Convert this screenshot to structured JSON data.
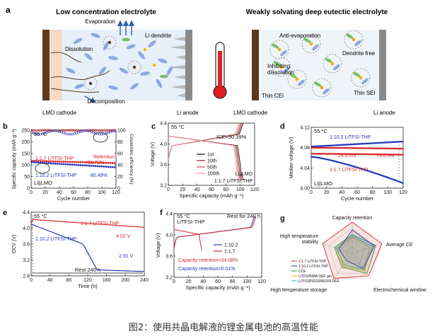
{
  "panel_a": {
    "letter": "a",
    "left_title": "Low concentration electrolyte",
    "right_title": "Weakly solvating deep eutectic electrolyte",
    "evaporation": "Evaporation",
    "li_dendrite": "Li dendrite",
    "dissolution": "Dissolution",
    "decomposition": "Decomposition",
    "lmo_cathode_left": "LMO cathode",
    "li_anode_left": "Li anode",
    "anti_evaporation": "Anti-evaporation",
    "dendrite_free": "Dendrite free",
    "inhibiting_dissolution": "Inhibiting\ndissolution",
    "thin_cei": "Thin CEI",
    "thin_sei": "Thin SEI",
    "lmo_cathode_right": "LMO cathode",
    "li_anode_right": "Li anode"
  },
  "caption": "图2：使用共晶电解液的锂金属电池的高温性能",
  "chart_data": [
    {
      "id": "b",
      "type": "scatter",
      "letter": "b",
      "xlabel": "Cycle number",
      "ylabel": "Specific capacity (mAh g⁻¹)",
      "y2label": "Coulombic efficiency (%)",
      "xlim": [
        0,
        120
      ],
      "ylim": [
        0,
        250
      ],
      "y2lim": [
        0,
        100
      ],
      "xticks": [
        0,
        20,
        40,
        60,
        80,
        100,
        120
      ],
      "yticks": [
        0,
        50,
        100,
        150,
        200,
        250
      ],
      "y2ticks": [
        0,
        20,
        40,
        60,
        80,
        100
      ],
      "annotations": {
        "temp": "55 °C",
        "retention_a": "Retention",
        "retention_b": "=91.72%",
        "val2": "80.49%",
        "cell": "Li||LMO"
      },
      "series": [
        {
          "name": "1:1.7 LiTFSI-THP",
          "color": "#d62728",
          "cap_start": 118,
          "cap_end": 108,
          "ce": 99.5
        },
        {
          "name": "1:10.2 LiTFSI-THP",
          "color": "#2338b8",
          "cap_start": 112,
          "cap_end": 90,
          "ce": 96
        }
      ]
    },
    {
      "id": "c",
      "type": "line",
      "letter": "c",
      "xlabel": "Specific capacity (mAh g⁻¹)",
      "ylabel": "Voltage (V)",
      "xlim": [
        0,
        120
      ],
      "ylim": [
        3.2,
        4.4
      ],
      "xticks": [
        0,
        20,
        40,
        60,
        80,
        100,
        120
      ],
      "yticks": [
        3.2,
        3.6,
        4.0,
        4.4
      ],
      "annotations": {
        "temp": "55 °C",
        "ice": "ICE=90.39%",
        "cell_a": "Li||LMO",
        "cell_b": "1:1.7 LiTFSI:THP"
      },
      "series": [
        {
          "name": "1st",
          "color": "#3d0c0c",
          "cap": 104
        },
        {
          "name": "10th",
          "color": "#8b2020",
          "cap": 102
        },
        {
          "name": "50th",
          "color": "#c0504d",
          "cap": 100
        },
        {
          "name": "100th",
          "color": "#e8a0a0",
          "cap": 98
        }
      ]
    },
    {
      "id": "d",
      "type": "scatter",
      "letter": "d",
      "xlabel": "Cycle number",
      "ylabel": "Median voltage (V)",
      "xlim": [
        0,
        120
      ],
      "ylim": [
        4.0,
        4.12
      ],
      "xticks": [
        0,
        20,
        40,
        60,
        80,
        100,
        120
      ],
      "yticks": [
        4.0,
        4.04,
        4.08,
        4.12
      ],
      "annotations": {
        "temp": "55 °C",
        "mv1": "24.9 mV",
        "mv2": "79.6 mV",
        "cell": "Li||LMO"
      },
      "series": [
        {
          "name": "1:10.2 LiTFSI-THP",
          "color": "#2338b8",
          "upper_start": 4.082,
          "upper_end": 4.092,
          "lower_start": 4.062,
          "lower_end": 4.01
        },
        {
          "name": "1:1.7 LiTFSI-THP",
          "color": "#d62728",
          "upper_start": 4.08,
          "upper_end": 4.078,
          "lower_start": 4.068,
          "lower_end": 4.066
        }
      ]
    },
    {
      "id": "e",
      "type": "line",
      "letter": "e",
      "xlabel": "Time (h)",
      "ylabel": "OCV (V)",
      "xlim": [
        0,
        240
      ],
      "ylim": [
        2.8,
        4.4
      ],
      "xticks": [
        0,
        40,
        80,
        120,
        160,
        200,
        240
      ],
      "yticks": [
        2.8,
        3.2,
        3.6,
        4.0,
        4.4
      ],
      "annotations": {
        "temp": "55 °C",
        "v1": "4.02 V",
        "v2": "2.91 V",
        "rest": "Rest 240 h"
      },
      "series": [
        {
          "name": "1:1.7 LiTFSI-THP",
          "color": "#d62728",
          "end_value": 4.02
        },
        {
          "name": "1:10.2 LiTFSI-THP",
          "color": "#2338b8",
          "end_value": 2.91
        }
      ]
    },
    {
      "id": "f",
      "type": "line",
      "letter": "f",
      "xlabel": "Specific capacity (mAh g⁻¹)",
      "ylabel": "Voltage (V)",
      "xlim": [
        0,
        120
      ],
      "ylim": [
        3.2,
        4.4
      ],
      "xticks": [
        0,
        20,
        40,
        60,
        80,
        100,
        120
      ],
      "yticks": [
        3.2,
        3.6,
        4.0,
        4.4
      ],
      "annotations": {
        "temp": "55 °C",
        "electrolyte": "LiTFSI-THP",
        "rest": "Rest for 240 h",
        "ret1": "Capacity retention=34.08%",
        "ret2": "Capacity retention=0.01%"
      },
      "series": [
        {
          "name": "1:10.2",
          "color": "#2338b8",
          "charge_cap": 110,
          "discharge_cap": 0.01
        },
        {
          "name": "1:1.7",
          "color": "#d62728",
          "charge_cap": 112,
          "discharge_cap": 38
        }
      ]
    },
    {
      "id": "g",
      "type": "radar",
      "letter": "g",
      "axes": [
        "Capacity retention",
        "Average CE",
        "Electrochemical window",
        "High temperature storage",
        "High temperature\nstability"
      ],
      "legend": [
        "1:1.7 LiTFSI-THP",
        "1:10.2 LiTFSI-THP",
        "CCE",
        "LiTFSI/NMA DEE gel",
        "LiTFSI/PEGDME/SN DEE"
      ],
      "series": [
        {
          "name": "1:1.7 LiTFSI-THP",
          "color": "#d62728",
          "values": [
            1.0,
            1.0,
            0.9,
            1.0,
            1.0
          ]
        },
        {
          "name": "1:10.2 LiTFSI-THP",
          "color": "#2338b8",
          "values": [
            0.75,
            0.75,
            0.6,
            0.3,
            0.45
          ]
        },
        {
          "name": "CCE",
          "color": "#2ca02c",
          "values": [
            0.6,
            0.8,
            0.8,
            0.55,
            0.6
          ]
        },
        {
          "name": "LiTFSI/NMA DEE gel",
          "color": "#e6a817",
          "values": [
            0.5,
            0.6,
            0.7,
            0.5,
            0.5
          ]
        },
        {
          "name": "LiTFSI/PEGDME/SN DEE",
          "color": "#17becf",
          "values": [
            0.55,
            0.7,
            0.65,
            0.45,
            0.55
          ]
        }
      ]
    }
  ]
}
